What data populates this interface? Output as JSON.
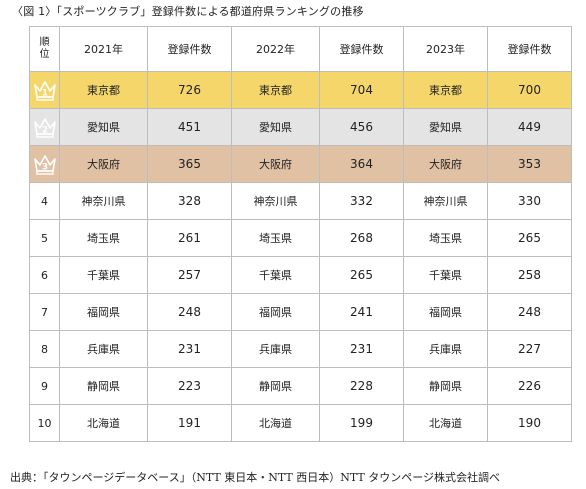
{
  "caption": "〈図 1〉「スポーツクラブ」登録件数による都道府県ランキングの推移",
  "table": {
    "header": {
      "rank_line1": "順",
      "rank_line2": "位",
      "year1": "2021年",
      "count1": "登録件数",
      "year2": "2022年",
      "count2": "登録件数",
      "year3": "2023年",
      "count3": "登録件数"
    },
    "rows": [
      {
        "rank": "1",
        "p1": "東京都",
        "c1": "726",
        "p2": "東京都",
        "c2": "704",
        "p3": "東京都",
        "c3": "700"
      },
      {
        "rank": "2",
        "p1": "愛知県",
        "c1": "451",
        "p2": "愛知県",
        "c2": "456",
        "p3": "愛知県",
        "c3": "449"
      },
      {
        "rank": "3",
        "p1": "大阪府",
        "c1": "365",
        "p2": "大阪府",
        "c2": "364",
        "p3": "大阪府",
        "c3": "353"
      },
      {
        "rank": "4",
        "p1": "神奈川県",
        "c1": "328",
        "p2": "神奈川県",
        "c2": "332",
        "p3": "神奈川県",
        "c3": "330"
      },
      {
        "rank": "5",
        "p1": "埼玉県",
        "c1": "261",
        "p2": "埼玉県",
        "c2": "268",
        "p3": "埼玉県",
        "c3": "265"
      },
      {
        "rank": "6",
        "p1": "千葉県",
        "c1": "257",
        "p2": "千葉県",
        "c2": "265",
        "p3": "千葉県",
        "c3": "258"
      },
      {
        "rank": "7",
        "p1": "福岡県",
        "c1": "248",
        "p2": "福岡県",
        "c2": "241",
        "p3": "福岡県",
        "c3": "248"
      },
      {
        "rank": "8",
        "p1": "兵庫県",
        "c1": "231",
        "p2": "兵庫県",
        "c2": "231",
        "p3": "兵庫県",
        "c3": "227"
      },
      {
        "rank": "9",
        "p1": "静岡県",
        "c1": "223",
        "p2": "静岡県",
        "c2": "228",
        "p3": "静岡県",
        "c3": "226"
      },
      {
        "rank": "10",
        "p1": "北海道",
        "c1": "191",
        "p2": "北海道",
        "c2": "199",
        "p3": "北海道",
        "c3": "190"
      }
    ]
  },
  "colors": {
    "rank1_bg": "#f5d66b",
    "rank2_bg": "#e4e4e4",
    "rank3_bg": "#e1c1a4",
    "crown_icon": "#ffffff"
  },
  "icons": {
    "top3_rank": "crown-icon"
  },
  "source": "出典：「タウンページデータベース」（NTT 東日本・NTT 西日本）NTT タウンページ株式会社調べ"
}
